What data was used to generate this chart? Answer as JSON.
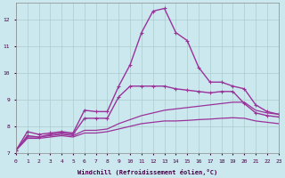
{
  "xlabel": "Windchill (Refroidissement éolien,°C)",
  "background_color": "#cce8ef",
  "grid_color": "#aacccc",
  "line_color": "#993399",
  "xlim": [
    0,
    23
  ],
  "ylim": [
    7,
    12.6
  ],
  "xticks": [
    0,
    1,
    2,
    3,
    4,
    5,
    6,
    7,
    8,
    9,
    10,
    11,
    12,
    13,
    14,
    15,
    16,
    17,
    18,
    19,
    20,
    21,
    22,
    23
  ],
  "yticks": [
    7,
    8,
    9,
    10,
    11,
    12
  ],
  "series": [
    {
      "x": [
        0,
        1,
        2,
        3,
        4,
        5,
        6,
        7,
        8,
        9,
        10,
        11,
        12,
        13,
        14,
        15,
        16,
        17,
        18,
        19,
        20,
        21,
        22,
        23
      ],
      "y": [
        7.1,
        7.8,
        7.7,
        7.75,
        7.8,
        7.75,
        8.6,
        8.55,
        8.55,
        9.5,
        10.3,
        11.5,
        12.3,
        12.4,
        11.5,
        11.2,
        10.2,
        9.65,
        9.65,
        9.5,
        9.4,
        8.8,
        8.55,
        8.45
      ],
      "marker": true,
      "lw": 1.0
    },
    {
      "x": [
        0,
        1,
        2,
        3,
        4,
        5,
        6,
        7,
        8,
        9,
        10,
        11,
        12,
        13,
        14,
        15,
        16,
        17,
        18,
        19,
        20,
        21,
        22,
        23
      ],
      "y": [
        7.1,
        7.65,
        7.6,
        7.7,
        7.75,
        7.7,
        8.3,
        8.3,
        8.3,
        9.1,
        9.5,
        9.5,
        9.5,
        9.5,
        9.4,
        9.35,
        9.3,
        9.25,
        9.3,
        9.3,
        8.85,
        8.5,
        8.4,
        8.35
      ],
      "marker": true,
      "lw": 1.0
    },
    {
      "x": [
        0,
        1,
        2,
        3,
        4,
        5,
        6,
        7,
        8,
        9,
        10,
        11,
        12,
        13,
        14,
        15,
        16,
        17,
        18,
        19,
        20,
        21,
        22,
        23
      ],
      "y": [
        7.1,
        7.6,
        7.6,
        7.65,
        7.7,
        7.65,
        7.85,
        7.85,
        7.9,
        8.1,
        8.25,
        8.4,
        8.5,
        8.6,
        8.65,
        8.7,
        8.75,
        8.8,
        8.85,
        8.9,
        8.9,
        8.6,
        8.5,
        8.45
      ],
      "marker": false,
      "lw": 0.9
    },
    {
      "x": [
        0,
        1,
        2,
        3,
        4,
        5,
        6,
        7,
        8,
        9,
        10,
        11,
        12,
        13,
        14,
        15,
        16,
        17,
        18,
        19,
        20,
        21,
        22,
        23
      ],
      "y": [
        7.1,
        7.55,
        7.55,
        7.6,
        7.65,
        7.6,
        7.75,
        7.75,
        7.8,
        7.9,
        8.0,
        8.1,
        8.15,
        8.2,
        8.2,
        8.22,
        8.25,
        8.27,
        8.3,
        8.32,
        8.3,
        8.2,
        8.15,
        8.1
      ],
      "marker": false,
      "lw": 0.9
    }
  ]
}
